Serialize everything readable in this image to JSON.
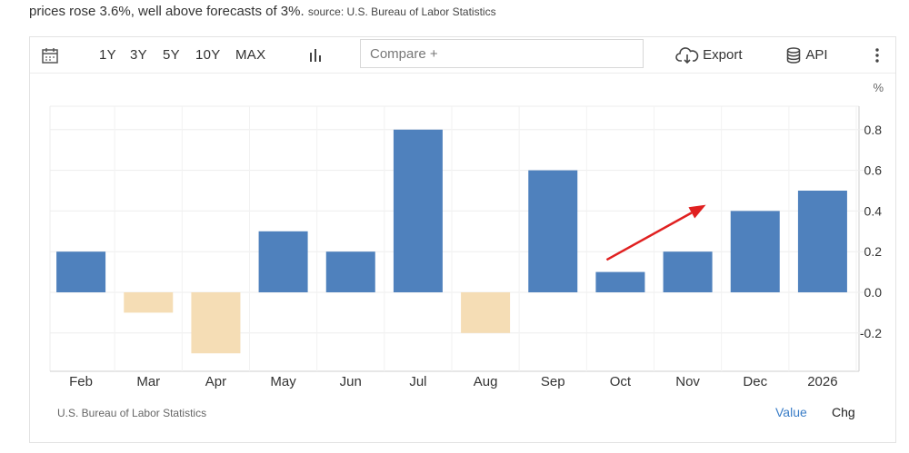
{
  "headline": {
    "text": "prices rose 3.6%, well above forecasts of 3%.",
    "source": "source: U.S. Bureau of Labor Statistics"
  },
  "toolbar": {
    "calendar_icon": "calendar-icon",
    "ranges": [
      "1Y",
      "3Y",
      "5Y",
      "10Y",
      "MAX"
    ],
    "chart_type_icon": "bar-chart-icon",
    "compare_placeholder": "Compare +",
    "export_label": "Export",
    "export_icon": "cloud-download-icon",
    "api_label": "API",
    "api_icon": "database-icon",
    "more_icon": "vertical-dots-icon"
  },
  "footer": {
    "source": "U.S. Bureau of Labor Statistics",
    "value_label": "Value",
    "chg_label": "Chg"
  },
  "colors": {
    "positive": "#4f81bd",
    "negative": "#f5ddb5",
    "arrow": "#e02020",
    "link": "#3a7dc7"
  },
  "chart_data": {
    "type": "bar",
    "unit_label": "%",
    "categories": [
      "Feb",
      "Mar",
      "Apr",
      "May",
      "Jun",
      "Jul",
      "Aug",
      "Sep",
      "Oct",
      "Nov",
      "Dec",
      "2026"
    ],
    "values": [
      0.2,
      -0.1,
      -0.3,
      0.3,
      0.2,
      0.8,
      -0.2,
      0.6,
      0.1,
      0.2,
      0.4,
      0.5
    ],
    "y_ticks": [
      "0.8",
      "0.6",
      "0.4",
      "0.2",
      "0.0",
      "-0.2"
    ],
    "ylim": [
      -0.4,
      0.9
    ],
    "y_axis_position": "right",
    "grid": true,
    "annotation": {
      "type": "arrow",
      "from": [
        "Oct",
        0.16
      ],
      "to": [
        "Nov",
        0.43
      ]
    }
  }
}
